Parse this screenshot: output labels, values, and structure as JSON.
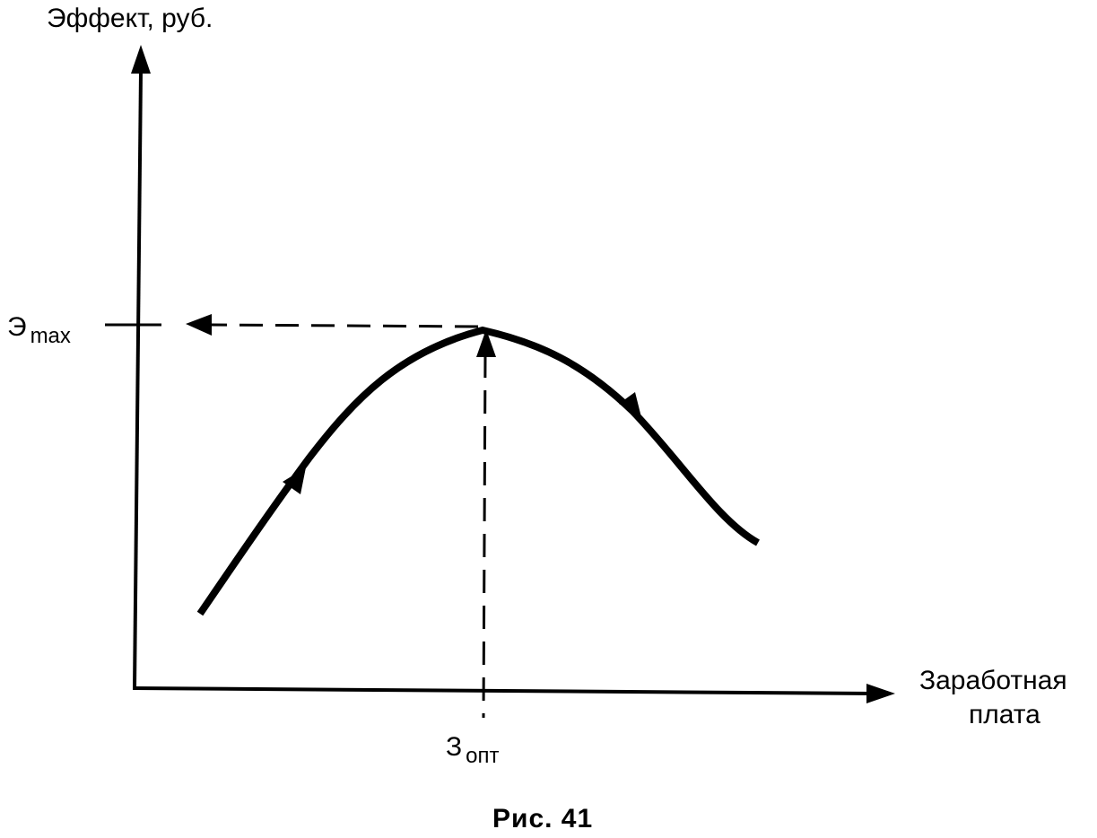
{
  "y_axis_label": "Эффект, руб.",
  "x_axis_label_line1": "Заработная",
  "x_axis_label_line2": "плата",
  "y_marker": {
    "symbol": "Э",
    "subscript": "max"
  },
  "x_marker": {
    "symbol": "З",
    "subscript": "опт"
  },
  "caption": "Рис. 41",
  "colors": {
    "ink": "#000000",
    "background": "#ffffff"
  }
}
